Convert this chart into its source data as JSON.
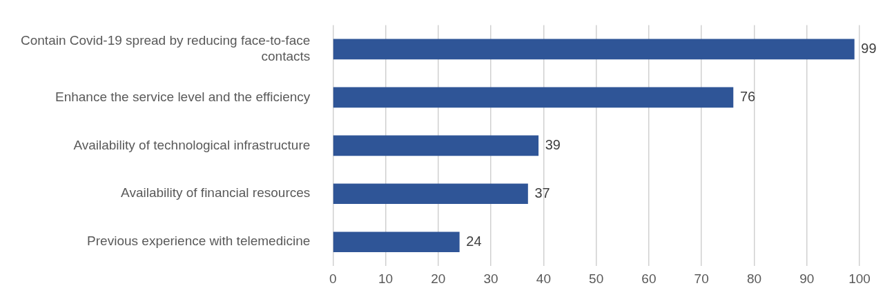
{
  "chart_data": {
    "type": "bar",
    "orientation": "horizontal",
    "categories": [
      "Contain Covid-19 spread by reducing face-to-face contacts",
      "Enhance the service level and the efficiency",
      "Availability of technological infrastructure",
      "Availability of financial resources",
      "Previous experience with telemedicine"
    ],
    "values": [
      99,
      76,
      39,
      37,
      24
    ],
    "color": "#2f5597",
    "xlim": [
      0,
      100
    ],
    "xticks": [
      0,
      10,
      20,
      30,
      40,
      50,
      60,
      70,
      80,
      90,
      100
    ],
    "grid": "x",
    "data_labels": true
  }
}
